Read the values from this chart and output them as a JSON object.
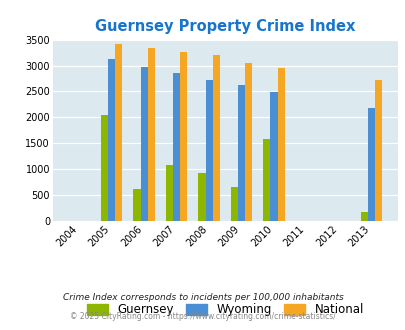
{
  "title": "Guernsey Property Crime Index",
  "title_color": "#1874cd",
  "years": [
    2004,
    2005,
    2006,
    2007,
    2008,
    2009,
    2010,
    2011,
    2012,
    2013
  ],
  "guernsey": [
    0,
    2050,
    620,
    1090,
    930,
    660,
    1580,
    0,
    0,
    175
  ],
  "wyoming": [
    0,
    3130,
    2980,
    2850,
    2720,
    2630,
    2480,
    0,
    0,
    2190
  ],
  "national": [
    0,
    3420,
    3340,
    3270,
    3210,
    3050,
    2950,
    0,
    0,
    2720
  ],
  "guernsey_color": "#8db600",
  "wyoming_color": "#4a8fd4",
  "national_color": "#f5a623",
  "bg_color": "#dce9ef",
  "ylim": [
    0,
    3500
  ],
  "yticks": [
    0,
    500,
    1000,
    1500,
    2000,
    2500,
    3000,
    3500
  ],
  "footnote1": "Crime Index corresponds to incidents per 100,000 inhabitants",
  "footnote2": "© 2025 CityRating.com - https://www.cityrating.com/crime-statistics/",
  "footnote1_color": "#222222",
  "footnote2_color": "#888888",
  "bar_width": 0.22
}
